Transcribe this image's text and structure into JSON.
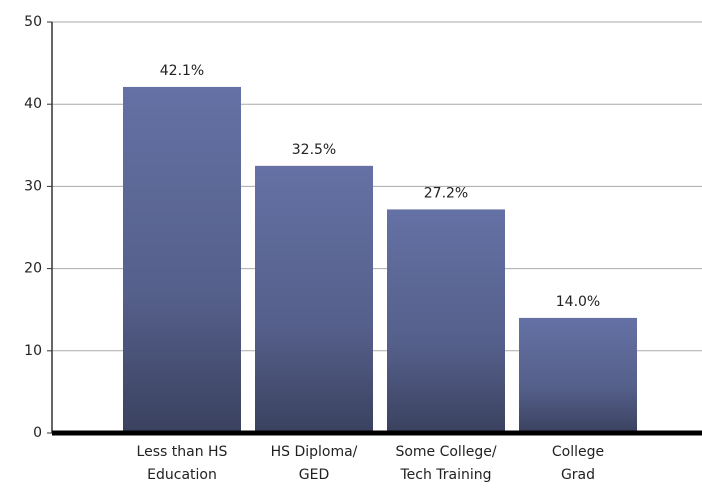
{
  "chart_data": {
    "type": "bar",
    "categories": [
      "Less than HS\nEducation",
      "HS Diploma/\nGED",
      "Some College/\nTech Training",
      "College\nGrad"
    ],
    "values": [
      42.1,
      32.5,
      27.2,
      14.0
    ],
    "value_labels": [
      "42.1%",
      "32.5%",
      "27.2%",
      "14.0%"
    ],
    "color": "#6a77ad",
    "ylim": [
      0,
      50
    ],
    "yticks": [
      0,
      10,
      20,
      30,
      40,
      50
    ],
    "grid": true
  }
}
